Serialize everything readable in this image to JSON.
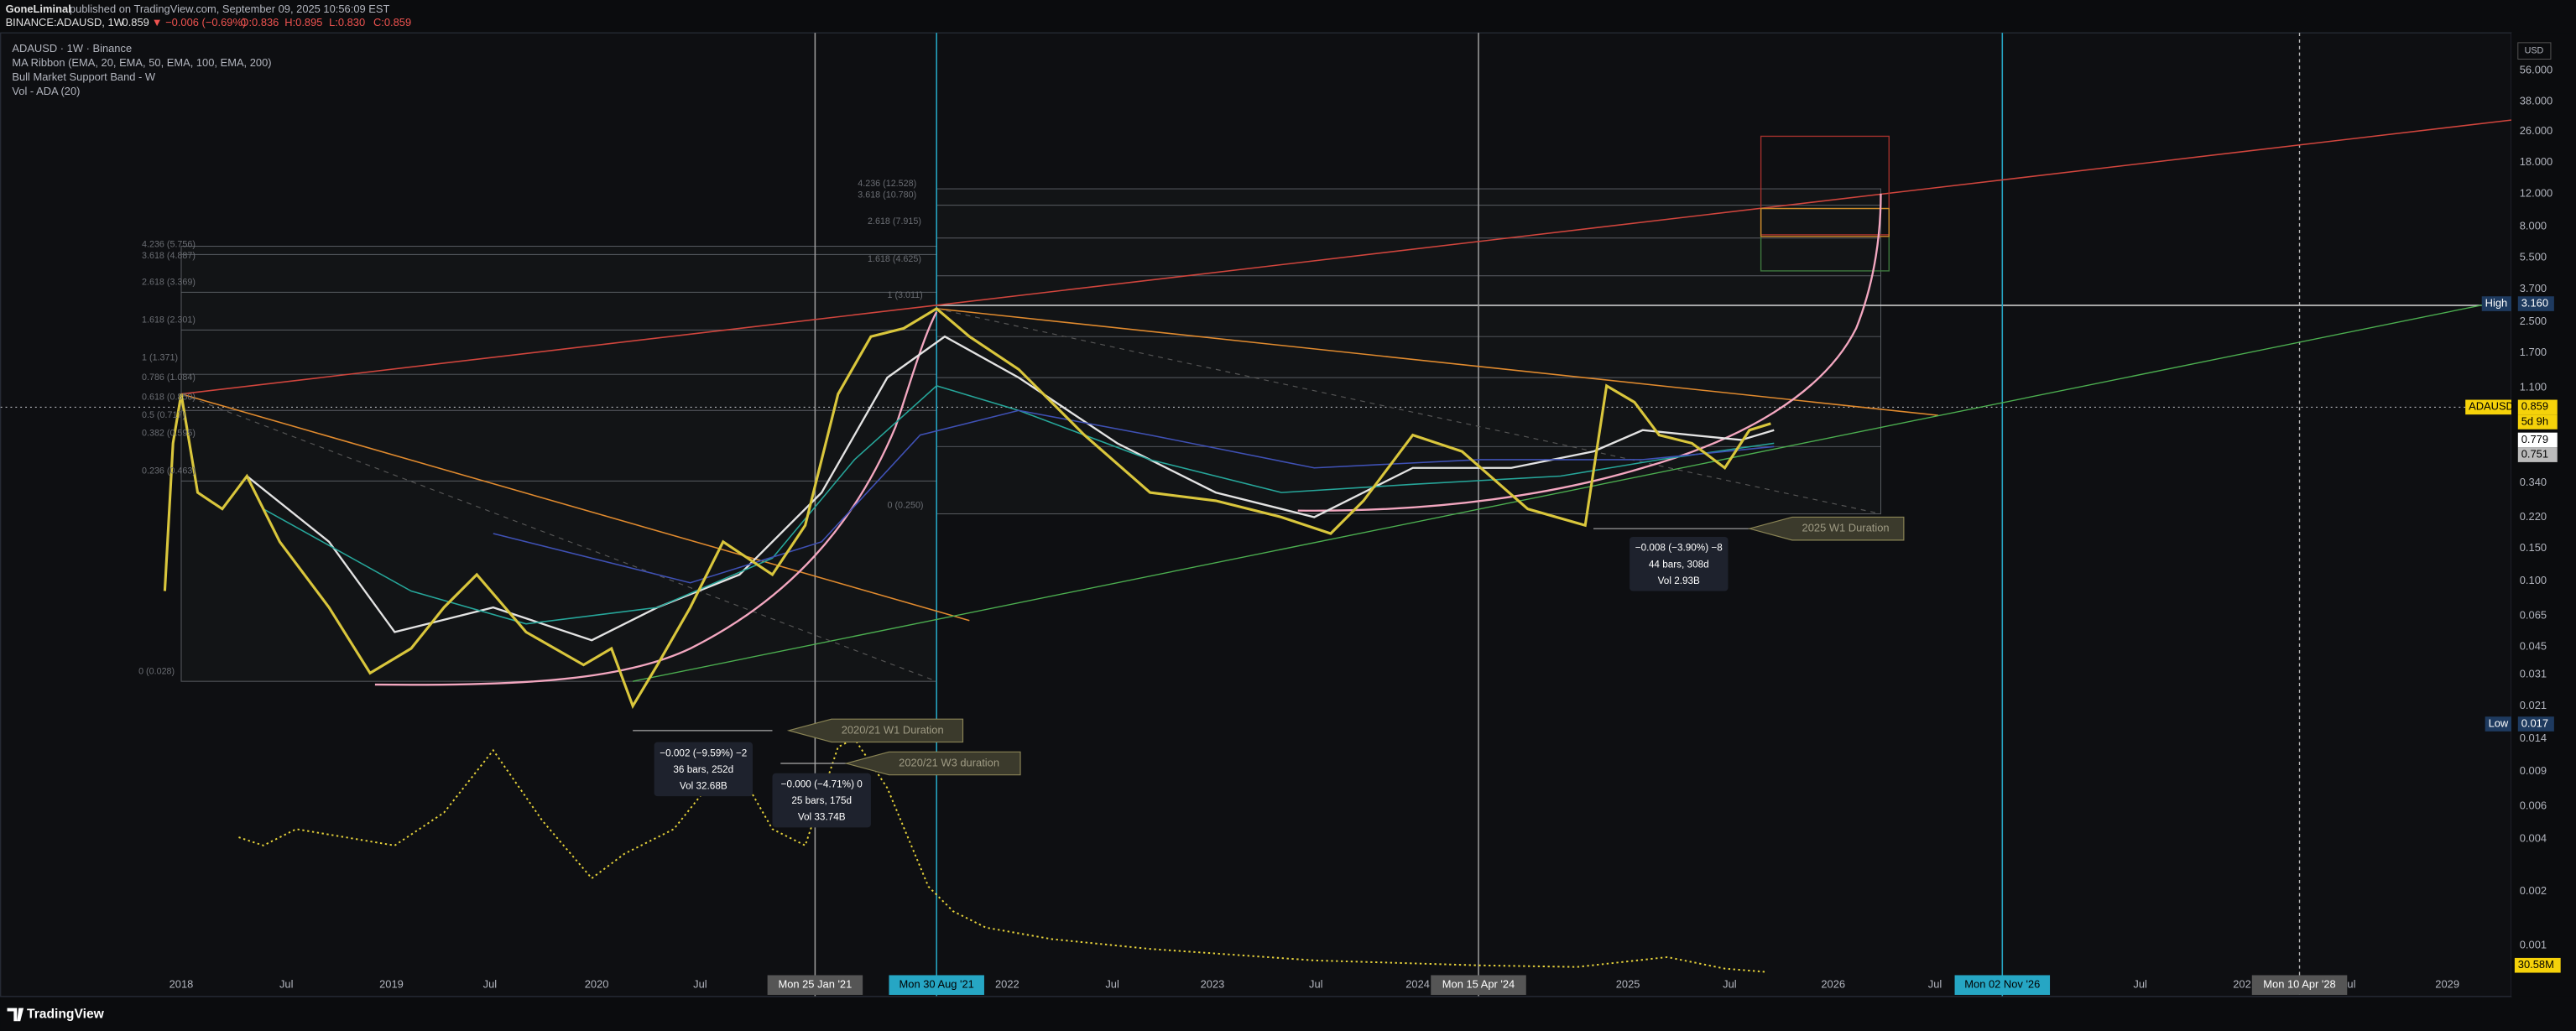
{
  "header": {
    "author": "GoneLiminal",
    "published": "published on TradingView.com, September 09, 2025 10:56:09 EST",
    "symbol": "BINANCE:ADAUSD, 1W",
    "price": "0.859",
    "change": "▼ −0.006 (−0.69%)",
    "open": "O:0.836",
    "high": "H:0.895",
    "low": "L:0.830",
    "close": "C:0.859"
  },
  "legend": [
    "ADAUSD · 1W · Binance",
    "MA Ribbon (EMA, 20, EMA, 50, EMA, 100, EMA, 200)",
    "Bull Market Support Band - W",
    "Vol - ADA (20)"
  ],
  "price_axis": {
    "currency": "USD",
    "labels": [
      "56.000",
      "38.000",
      "26.000",
      "18.000",
      "12.000",
      "8.000",
      "5.500",
      "3.700",
      "2.500",
      "1.700",
      "1.100",
      "0.340",
      "0.220",
      "0.150",
      "0.100",
      "0.065",
      "0.045",
      "0.031",
      "0.021",
      "0.014",
      "0.009",
      "0.006",
      "0.004",
      "0.002",
      "0.001"
    ],
    "high_label": "High",
    "high_value": "3.160",
    "low_label": "Low",
    "low_value": "0.017",
    "symbol_label": "ADAUSD",
    "last_price": "0.859",
    "countdown": "5d 9h",
    "ma_a": "0.779",
    "ma_b": "0.751",
    "volume": "30.58M"
  },
  "time_axis": {
    "labels": [
      "2018",
      "Jul",
      "2019",
      "Jul",
      "2020",
      "Jul",
      "2022",
      "Jul",
      "2023",
      "Jul",
      "2024",
      "2025",
      "Jul",
      "2026",
      "Jul",
      "Jul",
      "202",
      "Jul",
      "2029"
    ],
    "markers": [
      "Mon 25 Jan '21",
      "Mon 30 Aug '21",
      "Mon 15 Apr '24",
      "Mon 02 Nov '26",
      "Mon 10 Apr '28"
    ]
  },
  "fib_labels": [
    "4.236 (5.756)",
    "3.618 (4.887)",
    "2.618 (3.369)",
    "1.618 (2.301)",
    "1 (1.371)",
    "0.786 (1.084)",
    "0.618 (0.850)",
    "0.5 (0.717)",
    "0.382 (0.595)",
    "0.236 (0.463)",
    "0 (0.028)",
    "4.236 (12.528)",
    "3.618 (10.780)",
    "2.618 (7.915)",
    "1.618 (4.625)",
    "1 (3.011)",
    "0 (0.250)"
  ],
  "annotations": [
    "2020/21 W1 Duration",
    "2020/21 W3 duration",
    "2025 W1 Duration"
  ],
  "measures": [
    [
      "−0.002 (−9.59%) −2",
      "36 bars, 252d",
      "Vol 32.68B"
    ],
    [
      "−0.000 (−4.71%) 0",
      "25 bars, 175d",
      "Vol 33.74B"
    ],
    [
      "−0.008 (−3.90%) −8",
      "44 bars, 308d",
      "Vol 2.93B"
    ]
  ],
  "brand": "TradingView"
}
